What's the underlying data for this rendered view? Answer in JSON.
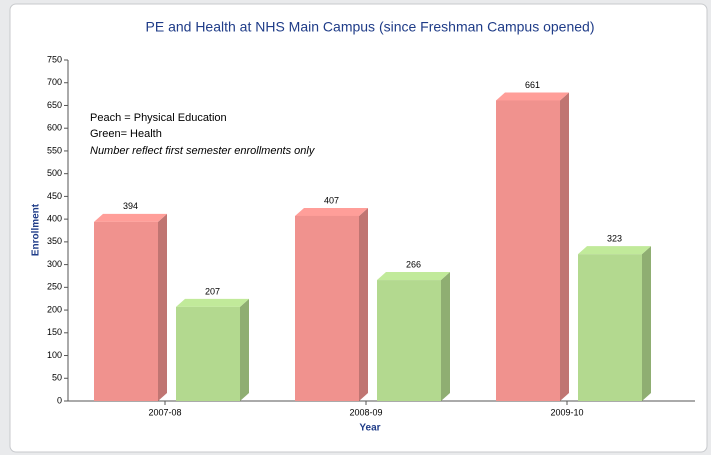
{
  "chart_data": {
    "type": "bar",
    "title": "PE and Health at NHS Main Campus (since Freshman Campus opened)",
    "xlabel": "Year",
    "ylabel": "Enrollment",
    "annotations": [
      "Peach = Physical Education",
      "Green= Health",
      "Number reflect first semester enrollments only"
    ],
    "categories": [
      "2007-08",
      "2008-09",
      "2009-10"
    ],
    "series": [
      {
        "color": "#f0928e",
        "values": [
          394,
          407,
          661
        ]
      },
      {
        "color": "#b3d98f",
        "values": [
          207,
          266,
          323
        ]
      }
    ],
    "ylim": [
      0,
      750
    ],
    "yticks": [
      0,
      50,
      100,
      150,
      200,
      250,
      300,
      350,
      400,
      450,
      500,
      550,
      600,
      650,
      700,
      750
    ],
    "grid": false
  }
}
